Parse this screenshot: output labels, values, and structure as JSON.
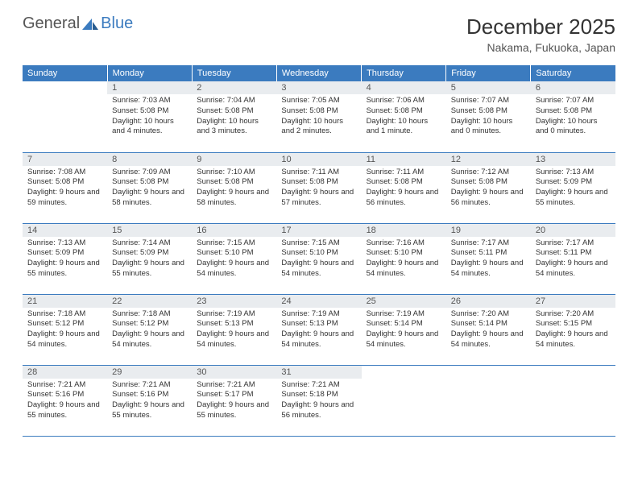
{
  "brand": {
    "part1": "General",
    "part2": "Blue"
  },
  "title": "December 2025",
  "location": "Nakama, Fukuoka, Japan",
  "colors": {
    "header_bg": "#3b7bbf",
    "header_text": "#ffffff",
    "daynum_bg": "#e9ecef",
    "border": "#3b7bbf",
    "text": "#333333"
  },
  "day_headers": [
    "Sunday",
    "Monday",
    "Tuesday",
    "Wednesday",
    "Thursday",
    "Friday",
    "Saturday"
  ],
  "weeks": [
    [
      {
        "n": "",
        "sr": "",
        "ss": "",
        "dl": ""
      },
      {
        "n": "1",
        "sr": "Sunrise: 7:03 AM",
        "ss": "Sunset: 5:08 PM",
        "dl": "Daylight: 10 hours and 4 minutes."
      },
      {
        "n": "2",
        "sr": "Sunrise: 7:04 AM",
        "ss": "Sunset: 5:08 PM",
        "dl": "Daylight: 10 hours and 3 minutes."
      },
      {
        "n": "3",
        "sr": "Sunrise: 7:05 AM",
        "ss": "Sunset: 5:08 PM",
        "dl": "Daylight: 10 hours and 2 minutes."
      },
      {
        "n": "4",
        "sr": "Sunrise: 7:06 AM",
        "ss": "Sunset: 5:08 PM",
        "dl": "Daylight: 10 hours and 1 minute."
      },
      {
        "n": "5",
        "sr": "Sunrise: 7:07 AM",
        "ss": "Sunset: 5:08 PM",
        "dl": "Daylight: 10 hours and 0 minutes."
      },
      {
        "n": "6",
        "sr": "Sunrise: 7:07 AM",
        "ss": "Sunset: 5:08 PM",
        "dl": "Daylight: 10 hours and 0 minutes."
      }
    ],
    [
      {
        "n": "7",
        "sr": "Sunrise: 7:08 AM",
        "ss": "Sunset: 5:08 PM",
        "dl": "Daylight: 9 hours and 59 minutes."
      },
      {
        "n": "8",
        "sr": "Sunrise: 7:09 AM",
        "ss": "Sunset: 5:08 PM",
        "dl": "Daylight: 9 hours and 58 minutes."
      },
      {
        "n": "9",
        "sr": "Sunrise: 7:10 AM",
        "ss": "Sunset: 5:08 PM",
        "dl": "Daylight: 9 hours and 58 minutes."
      },
      {
        "n": "10",
        "sr": "Sunrise: 7:11 AM",
        "ss": "Sunset: 5:08 PM",
        "dl": "Daylight: 9 hours and 57 minutes."
      },
      {
        "n": "11",
        "sr": "Sunrise: 7:11 AM",
        "ss": "Sunset: 5:08 PM",
        "dl": "Daylight: 9 hours and 56 minutes."
      },
      {
        "n": "12",
        "sr": "Sunrise: 7:12 AM",
        "ss": "Sunset: 5:08 PM",
        "dl": "Daylight: 9 hours and 56 minutes."
      },
      {
        "n": "13",
        "sr": "Sunrise: 7:13 AM",
        "ss": "Sunset: 5:09 PM",
        "dl": "Daylight: 9 hours and 55 minutes."
      }
    ],
    [
      {
        "n": "14",
        "sr": "Sunrise: 7:13 AM",
        "ss": "Sunset: 5:09 PM",
        "dl": "Daylight: 9 hours and 55 minutes."
      },
      {
        "n": "15",
        "sr": "Sunrise: 7:14 AM",
        "ss": "Sunset: 5:09 PM",
        "dl": "Daylight: 9 hours and 55 minutes."
      },
      {
        "n": "16",
        "sr": "Sunrise: 7:15 AM",
        "ss": "Sunset: 5:10 PM",
        "dl": "Daylight: 9 hours and 54 minutes."
      },
      {
        "n": "17",
        "sr": "Sunrise: 7:15 AM",
        "ss": "Sunset: 5:10 PM",
        "dl": "Daylight: 9 hours and 54 minutes."
      },
      {
        "n": "18",
        "sr": "Sunrise: 7:16 AM",
        "ss": "Sunset: 5:10 PM",
        "dl": "Daylight: 9 hours and 54 minutes."
      },
      {
        "n": "19",
        "sr": "Sunrise: 7:17 AM",
        "ss": "Sunset: 5:11 PM",
        "dl": "Daylight: 9 hours and 54 minutes."
      },
      {
        "n": "20",
        "sr": "Sunrise: 7:17 AM",
        "ss": "Sunset: 5:11 PM",
        "dl": "Daylight: 9 hours and 54 minutes."
      }
    ],
    [
      {
        "n": "21",
        "sr": "Sunrise: 7:18 AM",
        "ss": "Sunset: 5:12 PM",
        "dl": "Daylight: 9 hours and 54 minutes."
      },
      {
        "n": "22",
        "sr": "Sunrise: 7:18 AM",
        "ss": "Sunset: 5:12 PM",
        "dl": "Daylight: 9 hours and 54 minutes."
      },
      {
        "n": "23",
        "sr": "Sunrise: 7:19 AM",
        "ss": "Sunset: 5:13 PM",
        "dl": "Daylight: 9 hours and 54 minutes."
      },
      {
        "n": "24",
        "sr": "Sunrise: 7:19 AM",
        "ss": "Sunset: 5:13 PM",
        "dl": "Daylight: 9 hours and 54 minutes."
      },
      {
        "n": "25",
        "sr": "Sunrise: 7:19 AM",
        "ss": "Sunset: 5:14 PM",
        "dl": "Daylight: 9 hours and 54 minutes."
      },
      {
        "n": "26",
        "sr": "Sunrise: 7:20 AM",
        "ss": "Sunset: 5:14 PM",
        "dl": "Daylight: 9 hours and 54 minutes."
      },
      {
        "n": "27",
        "sr": "Sunrise: 7:20 AM",
        "ss": "Sunset: 5:15 PM",
        "dl": "Daylight: 9 hours and 54 minutes."
      }
    ],
    [
      {
        "n": "28",
        "sr": "Sunrise: 7:21 AM",
        "ss": "Sunset: 5:16 PM",
        "dl": "Daylight: 9 hours and 55 minutes."
      },
      {
        "n": "29",
        "sr": "Sunrise: 7:21 AM",
        "ss": "Sunset: 5:16 PM",
        "dl": "Daylight: 9 hours and 55 minutes."
      },
      {
        "n": "30",
        "sr": "Sunrise: 7:21 AM",
        "ss": "Sunset: 5:17 PM",
        "dl": "Daylight: 9 hours and 55 minutes."
      },
      {
        "n": "31",
        "sr": "Sunrise: 7:21 AM",
        "ss": "Sunset: 5:18 PM",
        "dl": "Daylight: 9 hours and 56 minutes."
      },
      {
        "n": "",
        "sr": "",
        "ss": "",
        "dl": ""
      },
      {
        "n": "",
        "sr": "",
        "ss": "",
        "dl": ""
      },
      {
        "n": "",
        "sr": "",
        "ss": "",
        "dl": ""
      }
    ]
  ]
}
